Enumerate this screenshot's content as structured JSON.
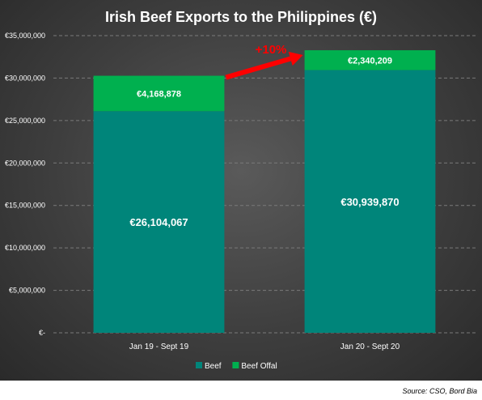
{
  "chart_data": {
    "type": "bar",
    "stacked": true,
    "title": "Irish Beef Exports to the Philippines (€)",
    "categories": [
      "Jan 19 - Sept 19",
      "Jan 20 - Sept 20"
    ],
    "series": [
      {
        "name": "Beef",
        "values": [
          26104067,
          30939870
        ],
        "color": "#00857a",
        "labels": [
          "€26,104,067",
          "€30,939,870"
        ]
      },
      {
        "name": "Beef Offal",
        "values": [
          4168878,
          2340209
        ],
        "color": "#00b04f",
        "labels": [
          "€4,168,878",
          "€2,340,209"
        ]
      }
    ],
    "ylim": [
      0,
      35000000
    ],
    "yticks": [
      0,
      5000000,
      10000000,
      15000000,
      20000000,
      25000000,
      30000000,
      35000000
    ],
    "ytick_labels": [
      "€-",
      "€5,000,000",
      "€10,000,000",
      "€15,000,000",
      "€20,000,000",
      "€25,000,000",
      "€30,000,000",
      "€35,000,000"
    ],
    "grid": true,
    "legend_position": "bottom",
    "annotation": {
      "text": "+10%",
      "color": "#ff0000"
    },
    "background_color": "#404040",
    "text_color": "#ffffff"
  },
  "source": "Source: CSO, Bord Bia"
}
